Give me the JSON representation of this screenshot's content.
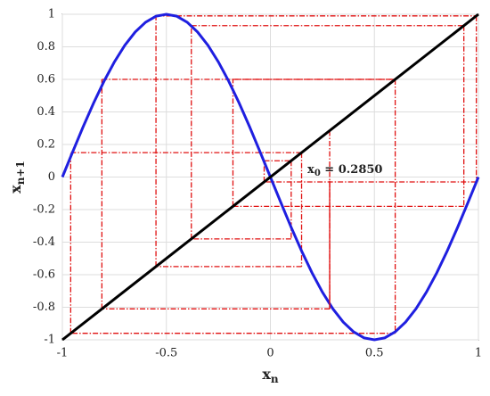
{
  "chart_data": {
    "type": "cobweb",
    "xlabel": "x",
    "xlabel_sub": "n",
    "ylabel": "x",
    "ylabel_sub": "n+1",
    "xlim": [
      -1,
      1
    ],
    "ylim": [
      -1,
      1
    ],
    "xticks": [
      -1,
      -0.5,
      0,
      0.5,
      1
    ],
    "yticks": [
      -1,
      -0.8,
      -0.6,
      -0.4,
      -0.2,
      0,
      0.2,
      0.4,
      0.6,
      0.8,
      1
    ],
    "grid": true,
    "series": [
      {
        "color": "#1f1fe0",
        "x": [
          -1,
          -0.95,
          -0.9,
          -0.85,
          -0.8,
          -0.75,
          -0.7,
          -0.65,
          -0.6,
          -0.55,
          -0.5,
          -0.45,
          -0.4,
          -0.35,
          -0.3,
          -0.25,
          -0.2,
          -0.15,
          -0.1,
          -0.05,
          0,
          0.05,
          0.1,
          0.15,
          0.2,
          0.25,
          0.3,
          0.35,
          0.4,
          0.45,
          0.5,
          0.55,
          0.6,
          0.65,
          0.7,
          0.75,
          0.8,
          0.85,
          0.9,
          0.95,
          1
        ],
        "values": [
          0,
          0.156,
          0.309,
          0.454,
          0.588,
          0.707,
          0.809,
          0.891,
          0.951,
          0.988,
          1,
          0.988,
          0.951,
          0.891,
          0.809,
          0.707,
          0.588,
          0.454,
          0.309,
          0.156,
          0,
          -0.156,
          -0.309,
          -0.454,
          -0.588,
          -0.707,
          -0.809,
          -0.891,
          -0.951,
          -0.988,
          -1,
          -0.988,
          -0.951,
          -0.891,
          -0.809,
          -0.707,
          -0.588,
          -0.454,
          -0.309,
          -0.156,
          0
        ]
      },
      {
        "color": "#000000",
        "x": [
          -1,
          1
        ],
        "values": [
          -1,
          1
        ]
      }
    ],
    "cobweb_color": "#e01010",
    "iterates": [
      0.285,
      -0.81,
      0.6,
      -0.96,
      0.15,
      -0.55,
      0.99,
      -0.03,
      0.1,
      -0.38,
      0.93,
      -0.18,
      0.6
    ],
    "annotation": {
      "text": "x",
      "sub": "0",
      "rest": " = 0.2850",
      "x": 0.285,
      "y": -0.04
    }
  }
}
